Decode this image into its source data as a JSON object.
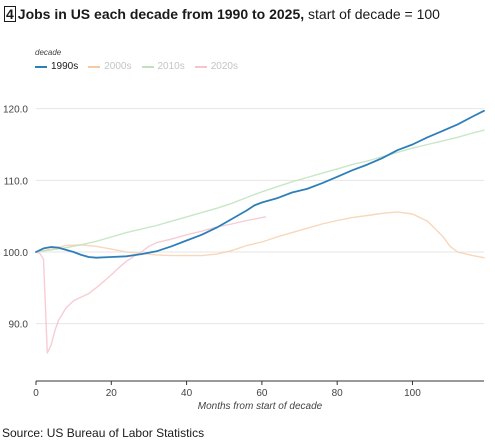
{
  "header": {
    "number": "4",
    "title_bold": "Jobs in US each decade from 1990 to 2025,",
    "title_rest": " start of decade = 100"
  },
  "footer": {
    "source": "Source: US Bureau of Labor Statistics"
  },
  "chart_data": {
    "type": "line",
    "title": "Jobs in US each decade from 1990 to 2025, start of decade = 100",
    "xlabel": "Months from start of decade",
    "ylabel": "",
    "xlim": [
      0,
      119
    ],
    "ylim": [
      82,
      124
    ],
    "xticks": [
      0,
      20,
      40,
      60,
      80,
      100
    ],
    "yticks": [
      90.0,
      100.0,
      110.0,
      120.0
    ],
    "ytick_labels": [
      "90.0",
      "100.0",
      "110.0",
      "120.0"
    ],
    "grid": "horizontal",
    "legend_title": "decade",
    "legend_position": "top-left",
    "series": [
      {
        "name": "1990s",
        "color": "#2e7fb8",
        "opacity": 1.0,
        "points": [
          [
            0,
            100
          ],
          [
            2,
            100.5
          ],
          [
            4,
            100.7
          ],
          [
            6,
            100.6
          ],
          [
            8,
            100.3
          ],
          [
            10,
            100.0
          ],
          [
            12,
            99.6
          ],
          [
            14,
            99.3
          ],
          [
            16,
            99.2
          ],
          [
            20,
            99.3
          ],
          [
            24,
            99.4
          ],
          [
            28,
            99.7
          ],
          [
            32,
            100.1
          ],
          [
            36,
            100.8
          ],
          [
            40,
            101.6
          ],
          [
            44,
            102.4
          ],
          [
            48,
            103.4
          ],
          [
            52,
            104.6
          ],
          [
            56,
            105.8
          ],
          [
            58,
            106.5
          ],
          [
            60,
            106.9
          ],
          [
            64,
            107.5
          ],
          [
            68,
            108.3
          ],
          [
            72,
            108.8
          ],
          [
            76,
            109.6
          ],
          [
            80,
            110.5
          ],
          [
            84,
            111.4
          ],
          [
            88,
            112.2
          ],
          [
            92,
            113.1
          ],
          [
            96,
            114.2
          ],
          [
            100,
            115.0
          ],
          [
            104,
            116.0
          ],
          [
            108,
            116.9
          ],
          [
            112,
            117.8
          ],
          [
            116,
            118.9
          ],
          [
            119,
            119.7
          ]
        ]
      },
      {
        "name": "2000s",
        "color": "#f5c9a3",
        "opacity": 0.75,
        "points": [
          [
            0,
            100
          ],
          [
            4,
            100.4
          ],
          [
            8,
            100.9
          ],
          [
            12,
            101.0
          ],
          [
            16,
            100.8
          ],
          [
            20,
            100.4
          ],
          [
            24,
            100.0
          ],
          [
            28,
            99.8
          ],
          [
            32,
            99.6
          ],
          [
            36,
            99.5
          ],
          [
            40,
            99.5
          ],
          [
            44,
            99.5
          ],
          [
            48,
            99.7
          ],
          [
            52,
            100.2
          ],
          [
            56,
            100.9
          ],
          [
            60,
            101.4
          ],
          [
            64,
            102.1
          ],
          [
            68,
            102.7
          ],
          [
            72,
            103.3
          ],
          [
            76,
            103.9
          ],
          [
            80,
            104.4
          ],
          [
            84,
            104.8
          ],
          [
            88,
            105.1
          ],
          [
            92,
            105.4
          ],
          [
            96,
            105.6
          ],
          [
            100,
            105.3
          ],
          [
            104,
            104.3
          ],
          [
            108,
            102.2
          ],
          [
            110,
            100.8
          ],
          [
            112,
            100.0
          ],
          [
            116,
            99.5
          ],
          [
            119,
            99.2
          ]
        ]
      },
      {
        "name": "2010s",
        "color": "#bfe2bd",
        "opacity": 0.85,
        "points": [
          [
            0,
            100
          ],
          [
            4,
            100.3
          ],
          [
            8,
            100.6
          ],
          [
            12,
            101.0
          ],
          [
            16,
            101.5
          ],
          [
            20,
            102.1
          ],
          [
            24,
            102.7
          ],
          [
            28,
            103.2
          ],
          [
            32,
            103.7
          ],
          [
            36,
            104.3
          ],
          [
            40,
            104.9
          ],
          [
            44,
            105.5
          ],
          [
            48,
            106.1
          ],
          [
            52,
            106.8
          ],
          [
            56,
            107.6
          ],
          [
            60,
            108.4
          ],
          [
            64,
            109.1
          ],
          [
            68,
            109.8
          ],
          [
            72,
            110.4
          ],
          [
            76,
            111.0
          ],
          [
            80,
            111.6
          ],
          [
            84,
            112.2
          ],
          [
            88,
            112.7
          ],
          [
            92,
            113.3
          ],
          [
            96,
            113.9
          ],
          [
            100,
            114.5
          ],
          [
            104,
            115.0
          ],
          [
            108,
            115.5
          ],
          [
            112,
            116.0
          ],
          [
            116,
            116.6
          ],
          [
            119,
            117.0
          ]
        ]
      },
      {
        "name": "2020s",
        "color": "#f7c3cc",
        "opacity": 0.85,
        "points": [
          [
            0,
            100
          ],
          [
            1,
            99.8
          ],
          [
            2,
            99.0
          ],
          [
            3,
            85.9
          ],
          [
            4,
            87.0
          ],
          [
            5,
            89.0
          ],
          [
            6,
            90.5
          ],
          [
            8,
            92.2
          ],
          [
            10,
            93.2
          ],
          [
            12,
            93.7
          ],
          [
            14,
            94.2
          ],
          [
            16,
            95.0
          ],
          [
            18,
            95.9
          ],
          [
            20,
            96.8
          ],
          [
            22,
            97.8
          ],
          [
            24,
            98.7
          ],
          [
            26,
            99.4
          ],
          [
            28,
            100.0
          ],
          [
            30,
            100.8
          ],
          [
            32,
            101.3
          ],
          [
            36,
            101.8
          ],
          [
            40,
            102.4
          ],
          [
            44,
            102.9
          ],
          [
            48,
            103.5
          ],
          [
            52,
            103.9
          ],
          [
            56,
            104.4
          ],
          [
            60,
            104.8
          ],
          [
            61,
            104.9
          ]
        ]
      }
    ]
  }
}
